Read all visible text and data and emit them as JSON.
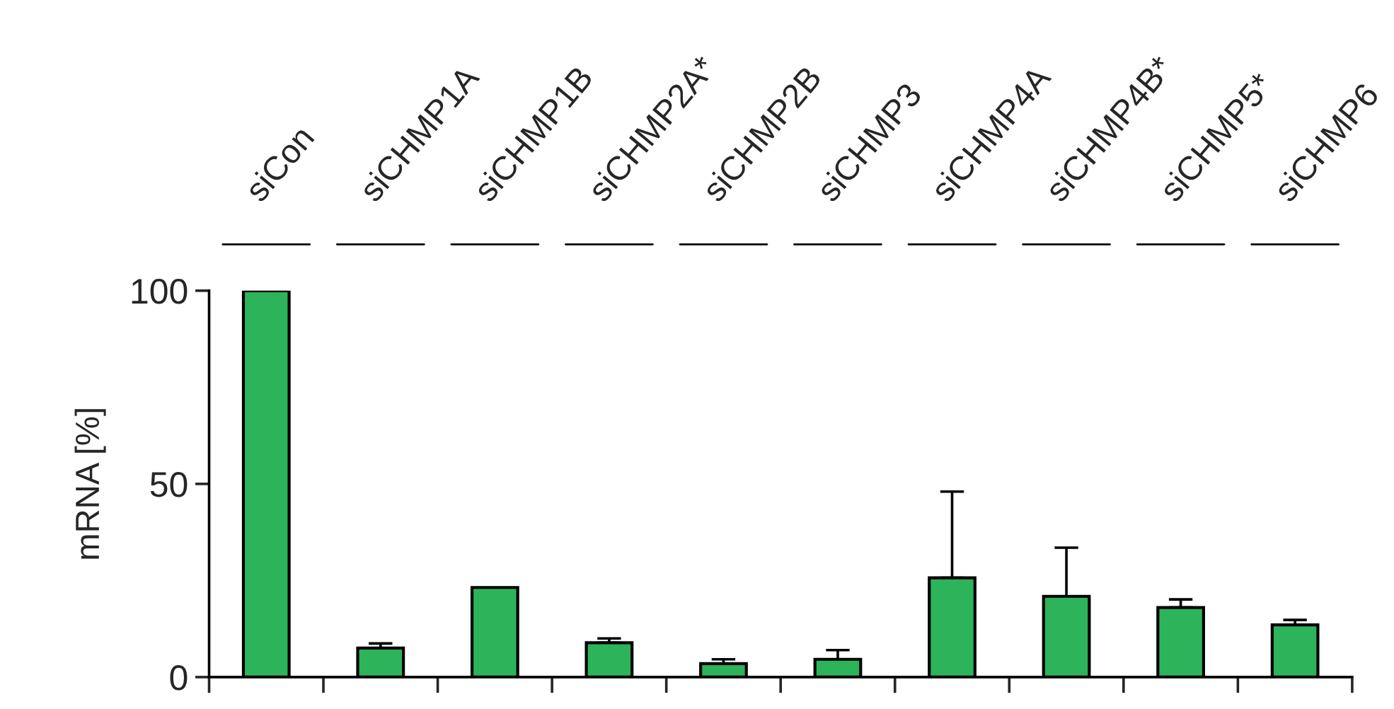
{
  "chart_data": {
    "type": "bar",
    "ylabel": "mRNA [%]",
    "categories": [
      "siCon",
      "siCHMP1A",
      "siCHMP1B",
      "siCHMP2A*",
      "siCHMP2B",
      "siCHMP3",
      "siCHMP4A",
      "siCHMP4B*",
      "siCHMP5*",
      "siCHMP6"
    ],
    "values": [
      100,
      7.5,
      23.2,
      8.9,
      3.5,
      4.6,
      25.7,
      20.9,
      18,
      13.5
    ],
    "errors": [
      null,
      [
        7.5,
        8.7
      ],
      null,
      [
        8.9,
        10
      ],
      [
        3.5,
        4.6
      ],
      [
        4.6,
        7
      ],
      [
        25.7,
        48
      ],
      [
        20.9,
        33.5
      ],
      [
        18,
        20.1
      ],
      [
        13.5,
        14.8
      ]
    ],
    "color": "#2db35a",
    "ylim": [
      0,
      100
    ],
    "yticks": [
      0,
      50,
      100
    ],
    "grid": false
  }
}
